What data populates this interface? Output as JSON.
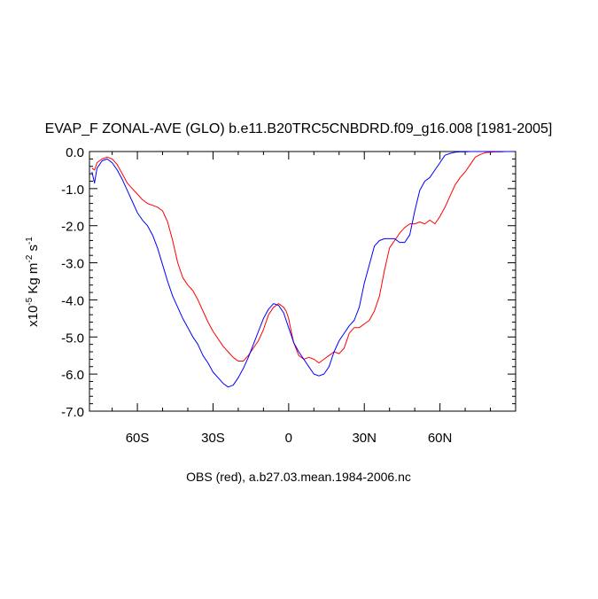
{
  "chart_data": {
    "type": "line",
    "title": "EVAP_F ZONAL-AVE (GLO) b.e11.B20TRC5CNBDRD.f09_g16.008 [1981-2005]",
    "subtitle": "OBS (red), a.b27.03.mean.1984-2006.nc",
    "ylabel_main": "x10",
    "ylabel_exp1": "-5",
    "ylabel_units": " Kg m",
    "ylabel_exp2": "-2",
    "ylabel_s": " s",
    "ylabel_exp3": "-1",
    "xlim": [
      -79,
      90
    ],
    "ylim": [
      -7.0,
      0.0
    ],
    "x_ticks": [
      {
        "value": -60,
        "label": "60S"
      },
      {
        "value": -30,
        "label": "30S"
      },
      {
        "value": 0,
        "label": "0"
      },
      {
        "value": 30,
        "label": "30N"
      },
      {
        "value": 60,
        "label": "60N"
      }
    ],
    "y_ticks": [
      {
        "value": 0.0,
        "label": "0.0"
      },
      {
        "value": -1.0,
        "label": "-1.0"
      },
      {
        "value": -2.0,
        "label": "-2.0"
      },
      {
        "value": -3.0,
        "label": "-3.0"
      },
      {
        "value": -4.0,
        "label": "-4.0"
      },
      {
        "value": -5.0,
        "label": "-5.0"
      },
      {
        "value": -6.0,
        "label": "-6.0"
      },
      {
        "value": -7.0,
        "label": "-7.0"
      }
    ],
    "series": [
      {
        "color": "#ff0000",
        "x": [
          -78,
          -77,
          -76,
          -74,
          -72,
          -70,
          -68,
          -66,
          -64,
          -62,
          -60,
          -58,
          -56,
          -54,
          -52,
          -50,
          -48,
          -46,
          -44,
          -42,
          -40,
          -38,
          -36,
          -34,
          -32,
          -30,
          -28,
          -26,
          -24,
          -22,
          -20,
          -18,
          -16,
          -14,
          -12,
          -10,
          -8,
          -6,
          -4,
          -2,
          -1,
          0,
          1,
          2,
          4,
          6,
          8,
          10,
          12,
          14,
          16,
          18,
          20,
          22,
          24,
          26,
          28,
          30,
          32,
          34,
          36,
          38,
          40,
          42,
          44,
          46,
          48,
          50,
          52,
          54,
          56,
          58,
          60,
          62,
          64,
          66,
          68,
          70,
          72,
          74,
          76,
          78,
          80,
          82,
          84,
          86,
          88,
          89
        ],
        "values": [
          -0.45,
          -0.5,
          -0.3,
          -0.2,
          -0.15,
          -0.2,
          -0.35,
          -0.6,
          -0.85,
          -1.0,
          -1.15,
          -1.3,
          -1.4,
          -1.45,
          -1.5,
          -1.6,
          -1.9,
          -2.4,
          -3.0,
          -3.4,
          -3.6,
          -3.75,
          -4.0,
          -4.3,
          -4.6,
          -4.85,
          -5.05,
          -5.25,
          -5.4,
          -5.55,
          -5.65,
          -5.65,
          -5.5,
          -5.3,
          -5.1,
          -4.8,
          -4.4,
          -4.2,
          -4.1,
          -4.2,
          -4.3,
          -4.5,
          -4.85,
          -5.15,
          -5.5,
          -5.6,
          -5.55,
          -5.6,
          -5.7,
          -5.6,
          -5.5,
          -5.4,
          -5.45,
          -5.3,
          -4.9,
          -4.75,
          -4.75,
          -4.65,
          -4.55,
          -4.3,
          -3.9,
          -3.2,
          -2.6,
          -2.4,
          -2.2,
          -2.05,
          -1.95,
          -1.95,
          -1.9,
          -1.95,
          -1.85,
          -1.95,
          -1.75,
          -1.5,
          -1.2,
          -0.9,
          -0.7,
          -0.55,
          -0.35,
          -0.15,
          -0.08,
          -0.03,
          -0.02,
          -0.01,
          -0.01,
          0.0,
          0.0,
          0.0
        ]
      },
      {
        "color": "#0000ff",
        "x": [
          -78,
          -77,
          -76,
          -74,
          -72,
          -70,
          -68,
          -66,
          -64,
          -62,
          -60,
          -58,
          -56,
          -54,
          -52,
          -50,
          -48,
          -46,
          -44,
          -42,
          -40,
          -38,
          -36,
          -34,
          -32,
          -30,
          -28,
          -26,
          -24,
          -22,
          -20,
          -18,
          -16,
          -14,
          -12,
          -10,
          -8,
          -6,
          -4,
          -2,
          -1,
          0,
          1,
          2,
          4,
          6,
          8,
          10,
          12,
          14,
          16,
          18,
          20,
          22,
          24,
          26,
          28,
          30,
          32,
          34,
          36,
          38,
          40,
          42,
          44,
          46,
          48,
          50,
          52,
          54,
          56,
          58,
          60,
          62,
          64,
          66,
          68,
          70,
          72,
          74,
          76,
          78,
          80,
          82,
          84,
          86,
          88,
          89
        ],
        "values": [
          -0.55,
          -0.85,
          -0.45,
          -0.25,
          -0.2,
          -0.3,
          -0.5,
          -0.75,
          -1.05,
          -1.35,
          -1.65,
          -1.85,
          -2.0,
          -2.25,
          -2.6,
          -3.05,
          -3.5,
          -3.9,
          -4.2,
          -4.5,
          -4.75,
          -5.0,
          -5.2,
          -5.5,
          -5.7,
          -5.95,
          -6.1,
          -6.25,
          -6.35,
          -6.3,
          -6.1,
          -5.85,
          -5.55,
          -5.2,
          -4.85,
          -4.5,
          -4.25,
          -4.1,
          -4.15,
          -4.35,
          -4.55,
          -4.75,
          -4.95,
          -5.15,
          -5.4,
          -5.6,
          -5.8,
          -6.0,
          -6.05,
          -6.0,
          -5.8,
          -5.4,
          -5.1,
          -4.9,
          -4.7,
          -4.55,
          -4.2,
          -3.55,
          -3.05,
          -2.55,
          -2.4,
          -2.35,
          -2.35,
          -2.35,
          -2.45,
          -2.45,
          -2.25,
          -1.6,
          -1.05,
          -0.8,
          -0.7,
          -0.5,
          -0.3,
          -0.1,
          -0.05,
          -0.02,
          -0.01,
          -0.01,
          0.0,
          0.0,
          0.0,
          0.0,
          0.0,
          0.0,
          0.0,
          0.0,
          0.0,
          0.0
        ]
      }
    ]
  }
}
